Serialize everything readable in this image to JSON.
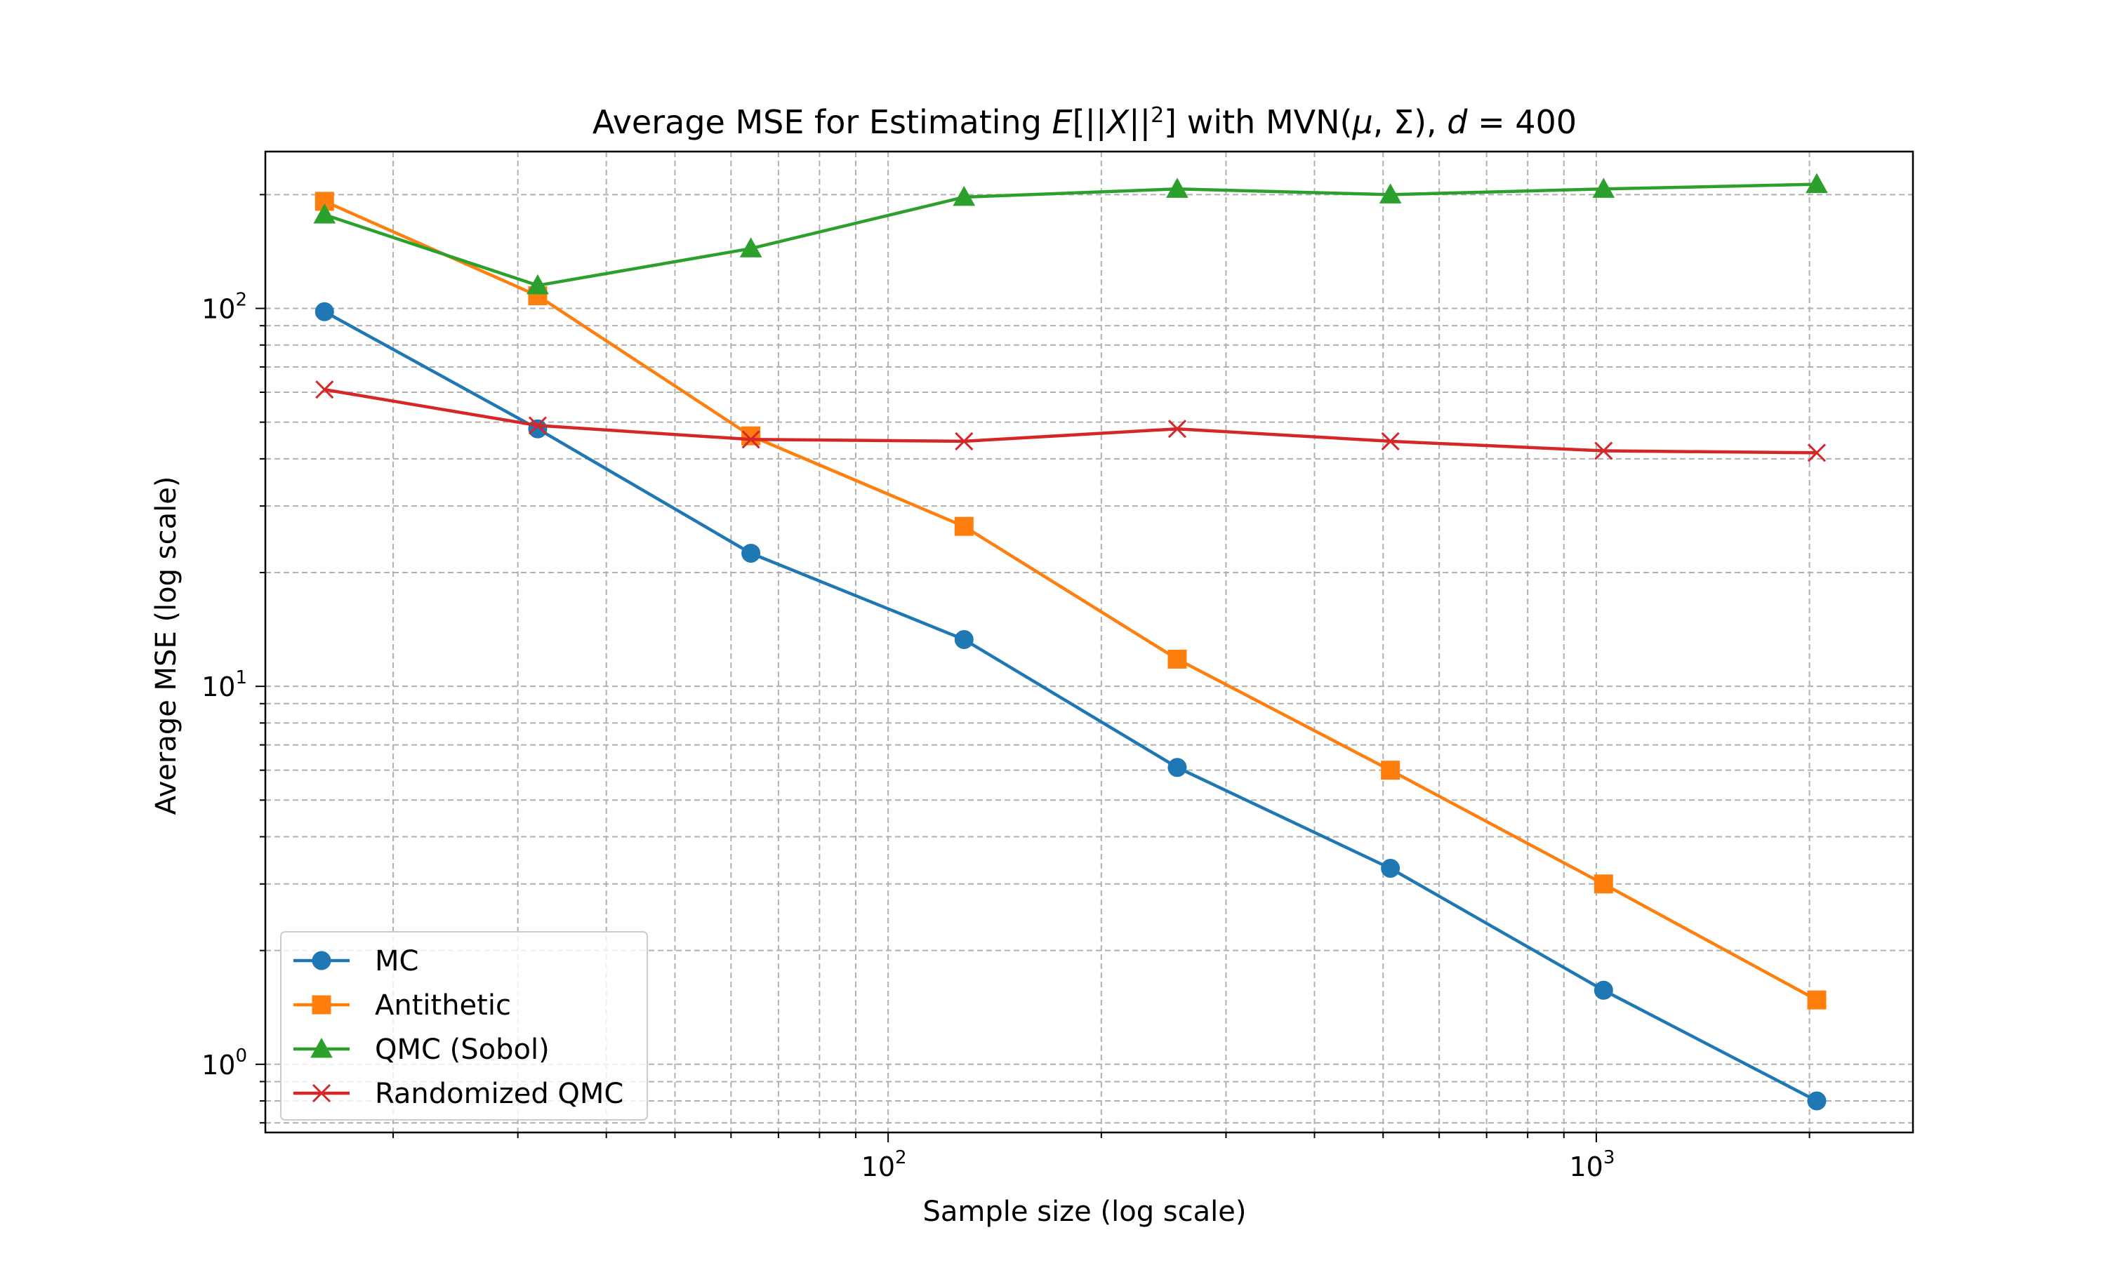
{
  "chart_data": {
    "type": "line",
    "title_parts": {
      "before": "Average MSE for Estimating ",
      "e": "E",
      "open": "[||",
      "x": "X",
      "close": "||",
      "sq": "2",
      "end": "]",
      "with": " with MVN(",
      "mu": "μ",
      "comma": ", Σ), ",
      "d": "d",
      "eq": " = 400"
    },
    "xlabel": "Sample size (log scale)",
    "ylabel": "Average MSE (log scale)",
    "xscale": "log",
    "yscale": "log",
    "xlim": [
      13.2,
      2800
    ],
    "ylim": [
      0.66,
      260
    ],
    "grid": "major and minor, dashed",
    "legend_position": "lower-left",
    "x_ticks": [
      {
        "value": 100,
        "base": "10",
        "exp": "2"
      },
      {
        "value": 1000,
        "base": "10",
        "exp": "3"
      }
    ],
    "y_ticks": [
      {
        "value": 1,
        "base": "10",
        "exp": "0"
      },
      {
        "value": 10,
        "base": "10",
        "exp": "1"
      },
      {
        "value": 100,
        "base": "10",
        "exp": "2"
      }
    ],
    "x": [
      16,
      32,
      64,
      128,
      256,
      512,
      1024,
      2048
    ],
    "series": [
      {
        "name": "MC",
        "color": "#1f77b4",
        "marker": "circle",
        "values": [
          98,
          48,
          22.5,
          13.3,
          6.1,
          3.3,
          1.57,
          0.8
        ]
      },
      {
        "name": "Antithetic",
        "color": "#ff7f0e",
        "marker": "square",
        "values": [
          192,
          108,
          46,
          26.5,
          11.8,
          6.0,
          3.0,
          1.48
        ]
      },
      {
        "name": "QMC (Sobol)",
        "color": "#2ca02c",
        "marker": "triangle",
        "values": [
          177,
          115,
          144,
          197,
          207,
          200,
          207,
          213
        ]
      },
      {
        "name": "Randomized QMC",
        "color": "#d62728",
        "marker": "x",
        "values": [
          61,
          49,
          45,
          44.5,
          48,
          44.5,
          42,
          41.5
        ]
      }
    ]
  }
}
